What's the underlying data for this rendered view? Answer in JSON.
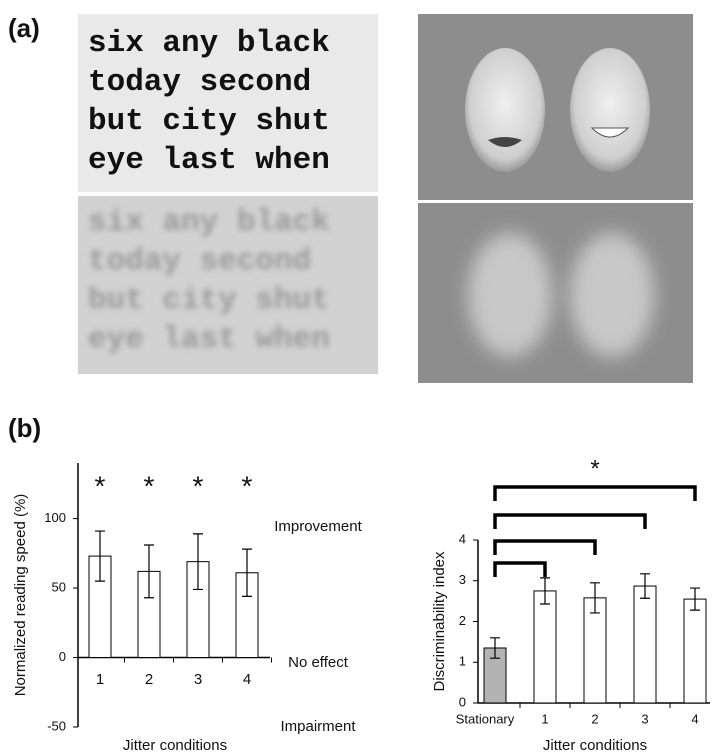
{
  "panel_labels": [
    "(a)",
    "(b)"
  ],
  "word_lines": [
    "six any black",
    "today second",
    "but city shut",
    "eye last when"
  ],
  "chart_data": [
    {
      "type": "bar",
      "ylabel": "Normalized reading speed (%)",
      "xlabel": "Jitter conditions",
      "categories": [
        "1",
        "2",
        "3",
        "4"
      ],
      "values": [
        73,
        62,
        69,
        61
      ],
      "errors": [
        18,
        19,
        20,
        17
      ],
      "significance": [
        "*",
        "*",
        "*",
        "*"
      ],
      "annotations": [
        "Improvement",
        "No effect",
        "Impairment"
      ],
      "color": "#ffffff",
      "ylim": [
        -50,
        140
      ],
      "yticks": [
        -50,
        0,
        50,
        100
      ]
    },
    {
      "type": "bar",
      "ylabel": "Discriminability  index",
      "xlabel": "Jitter conditions",
      "categories": [
        "Stationary",
        "1",
        "2",
        "3",
        "4"
      ],
      "values": [
        1.35,
        2.75,
        2.58,
        2.87,
        2.55
      ],
      "errors": [
        0.25,
        0.32,
        0.37,
        0.3,
        0.27
      ],
      "colors": [
        "#b3b3b3",
        "#ffffff",
        "#ffffff",
        "#ffffff",
        "#ffffff"
      ],
      "significance_label": "*",
      "ylim": [
        0,
        4
      ],
      "yticks": [
        0,
        1,
        2,
        3,
        4
      ]
    }
  ]
}
